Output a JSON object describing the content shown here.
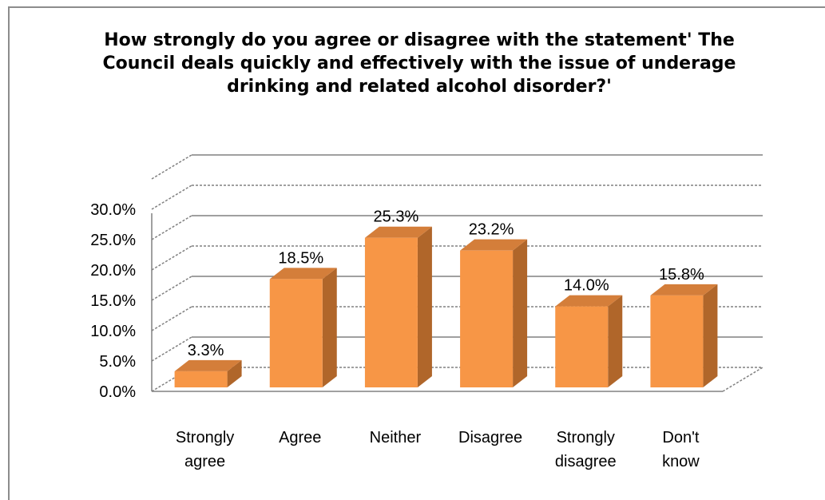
{
  "chart_data": {
    "type": "bar",
    "title": "How strongly do you agree or disagree with the statement' The Council deals quickly and effectively with the issue of underage drinking and related alcohol disorder?'",
    "categories": [
      [
        "Strongly",
        "agree"
      ],
      [
        "Agree"
      ],
      [
        "Neither"
      ],
      [
        "Disagree"
      ],
      [
        "Strongly",
        "disagree"
      ],
      [
        "Don't",
        "know"
      ]
    ],
    "values": [
      3.3,
      18.5,
      25.3,
      23.2,
      14.0,
      15.8
    ],
    "data_labels": [
      "3.3%",
      "18.5%",
      "25.3%",
      "23.2%",
      "14.0%",
      "15.8%"
    ],
    "ylim": [
      0,
      30
    ],
    "yticks": [
      "0.0%",
      "5.0%",
      "10.0%",
      "15.0%",
      "20.0%",
      "25.0%",
      "30.0%"
    ],
    "xlabel": "",
    "ylabel": "",
    "grid": true,
    "style": "3d-column",
    "colors": {
      "front": "#f79646",
      "side": "#b0662a",
      "top": "#d47e3a",
      "grid": "#808080"
    }
  }
}
